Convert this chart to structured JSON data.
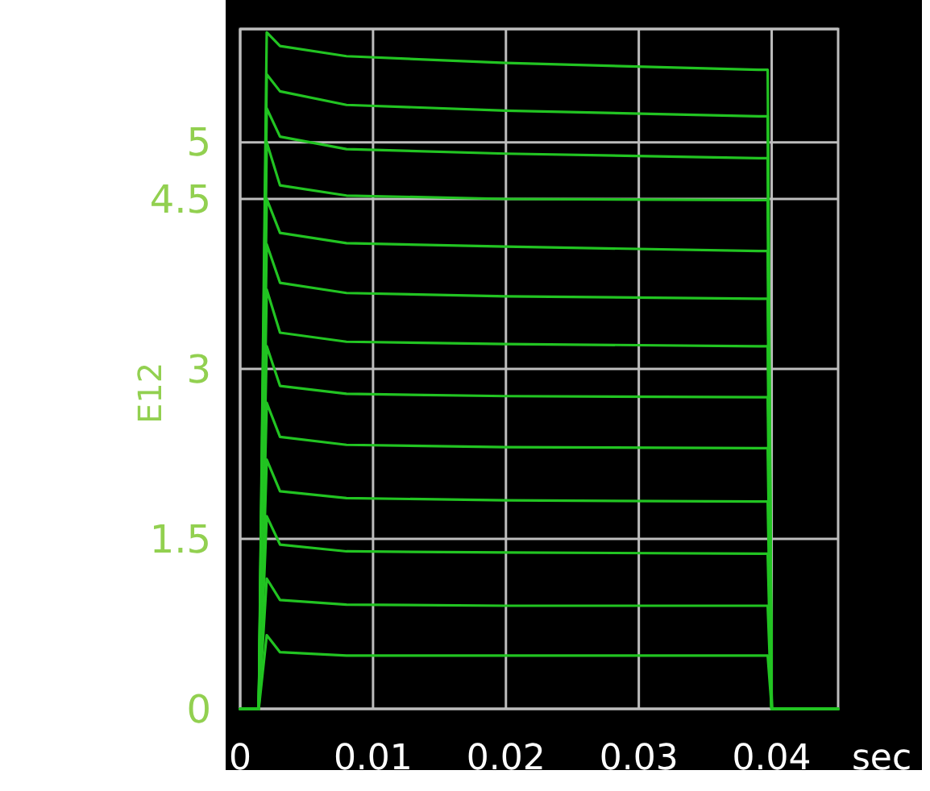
{
  "chart_data": {
    "type": "line",
    "xlabel": "sec",
    "ylabel": "E12",
    "xlim": [
      0,
      0.045
    ],
    "xticks": [
      0,
      0.01,
      0.02,
      0.03,
      0.04
    ],
    "ylim": [
      0,
      6
    ],
    "yticks": [
      0,
      1.5,
      3,
      4.5,
      5
    ],
    "grid": true,
    "marker": "none",
    "line_style": "solid",
    "series": [
      {
        "color": "#22c422",
        "x": [
          0,
          0.0014,
          0.002,
          0.003,
          0.008,
          0.02,
          0.039,
          0.0397,
          0.04,
          0.045
        ],
        "values": [
          0,
          0,
          0.65,
          0.5,
          0.47,
          0.47,
          0.47,
          0.47,
          0,
          0
        ]
      },
      {
        "color": "#22c422",
        "x": [
          0,
          0.0014,
          0.002,
          0.003,
          0.008,
          0.02,
          0.039,
          0.0397,
          0.04,
          0.045
        ],
        "values": [
          0,
          0,
          1.15,
          0.96,
          0.92,
          0.91,
          0.91,
          0.91,
          0,
          0
        ]
      },
      {
        "color": "#22c422",
        "x": [
          0,
          0.0014,
          0.002,
          0.003,
          0.008,
          0.02,
          0.039,
          0.0397,
          0.04,
          0.045
        ],
        "values": [
          0,
          0,
          1.7,
          1.45,
          1.39,
          1.38,
          1.37,
          1.37,
          0,
          0
        ]
      },
      {
        "color": "#22c422",
        "x": [
          0,
          0.0014,
          0.002,
          0.003,
          0.008,
          0.02,
          0.039,
          0.0397,
          0.04,
          0.045
        ],
        "values": [
          0,
          0,
          2.2,
          1.92,
          1.86,
          1.84,
          1.83,
          1.83,
          0,
          0
        ]
      },
      {
        "color": "#22c422",
        "x": [
          0,
          0.0014,
          0.002,
          0.003,
          0.008,
          0.02,
          0.039,
          0.0397,
          0.04,
          0.045
        ],
        "values": [
          0,
          0,
          2.7,
          2.4,
          2.33,
          2.31,
          2.3,
          2.3,
          0,
          0
        ]
      },
      {
        "color": "#22c422",
        "x": [
          0,
          0.0014,
          0.002,
          0.003,
          0.008,
          0.02,
          0.039,
          0.0397,
          0.04,
          0.045
        ],
        "values": [
          0,
          0,
          3.2,
          2.85,
          2.78,
          2.76,
          2.75,
          2.75,
          0,
          0
        ]
      },
      {
        "color": "#22c422",
        "x": [
          0,
          0.0014,
          0.002,
          0.003,
          0.008,
          0.02,
          0.039,
          0.0397,
          0.04,
          0.045
        ],
        "values": [
          0,
          0,
          3.7,
          3.32,
          3.24,
          3.22,
          3.2,
          3.2,
          0,
          0
        ]
      },
      {
        "color": "#22c422",
        "x": [
          0,
          0.0014,
          0.002,
          0.003,
          0.008,
          0.02,
          0.039,
          0.0397,
          0.04,
          0.045
        ],
        "values": [
          0,
          0,
          4.1,
          3.76,
          3.67,
          3.64,
          3.62,
          3.62,
          0,
          0
        ]
      },
      {
        "color": "#22c422",
        "x": [
          0,
          0.0014,
          0.002,
          0.003,
          0.008,
          0.02,
          0.039,
          0.0397,
          0.04,
          0.045
        ],
        "values": [
          0,
          0,
          4.5,
          4.2,
          4.11,
          4.08,
          4.04,
          4.04,
          0,
          0
        ]
      },
      {
        "color": "#22c422",
        "x": [
          0,
          0.0014,
          0.002,
          0.003,
          0.008,
          0.02,
          0.039,
          0.0397,
          0.04,
          0.045
        ],
        "values": [
          0,
          0,
          5.0,
          4.62,
          4.53,
          4.5,
          4.49,
          4.49,
          0,
          0
        ]
      },
      {
        "color": "#22c422",
        "x": [
          0,
          0.0014,
          0.002,
          0.003,
          0.008,
          0.02,
          0.039,
          0.0397,
          0.04,
          0.045
        ],
        "values": [
          0,
          0,
          5.3,
          5.05,
          4.94,
          4.9,
          4.86,
          4.86,
          0,
          0
        ]
      },
      {
        "color": "#22c422",
        "x": [
          0,
          0.0014,
          0.002,
          0.003,
          0.008,
          0.02,
          0.039,
          0.0397,
          0.04,
          0.045
        ],
        "values": [
          0,
          0,
          5.6,
          5.45,
          5.33,
          5.28,
          5.23,
          5.23,
          0,
          0
        ]
      },
      {
        "color": "#22c422",
        "x": [
          0,
          0.0014,
          0.002,
          0.003,
          0.008,
          0.02,
          0.039,
          0.0397,
          0.04,
          0.045
        ],
        "values": [
          0,
          0,
          5.97,
          5.85,
          5.76,
          5.7,
          5.64,
          5.64,
          0,
          0
        ]
      }
    ]
  }
}
